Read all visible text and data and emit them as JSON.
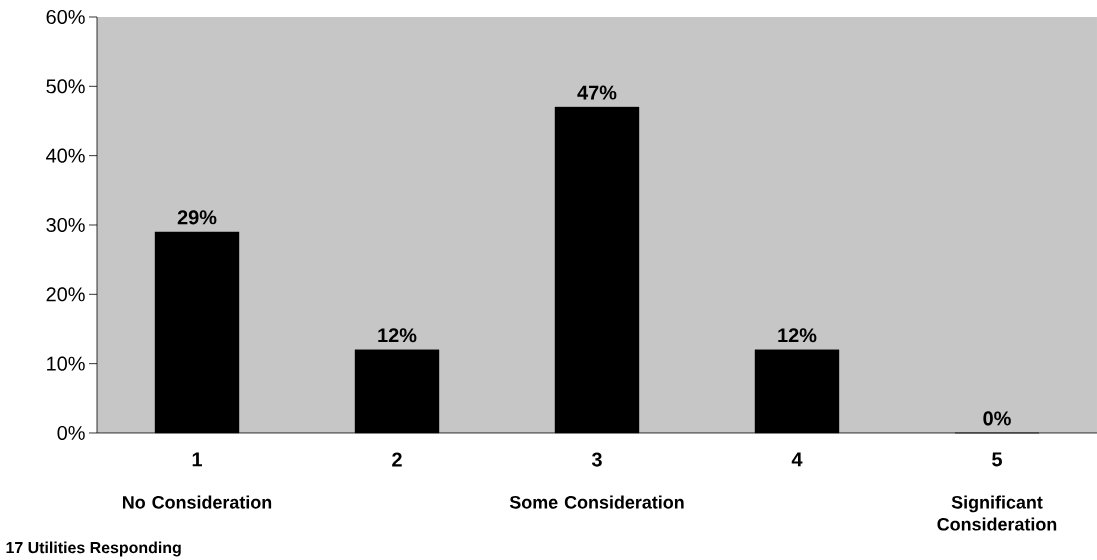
{
  "chart_data": {
    "type": "bar",
    "categories": [
      "1",
      "2",
      "3",
      "4",
      "5"
    ],
    "values": [
      29,
      12,
      47,
      12,
      0
    ],
    "value_labels": [
      "29%",
      "12%",
      "47%",
      "12%",
      "0%"
    ],
    "color": "#000000",
    "ylim": [
      0,
      60
    ],
    "yticks": [
      {
        "value": 0,
        "label": "0%"
      },
      {
        "value": 10,
        "label": "10%"
      },
      {
        "value": 20,
        "label": "20%"
      },
      {
        "value": 30,
        "label": "30%"
      },
      {
        "value": 40,
        "label": "40%"
      },
      {
        "value": 50,
        "label": "50%"
      },
      {
        "value": 60,
        "label": "60%"
      }
    ],
    "grid": false,
    "annotations": [
      "No Consideration",
      "Some Consideration",
      "Significant Consideration",
      "17 Utilities Responding"
    ]
  }
}
